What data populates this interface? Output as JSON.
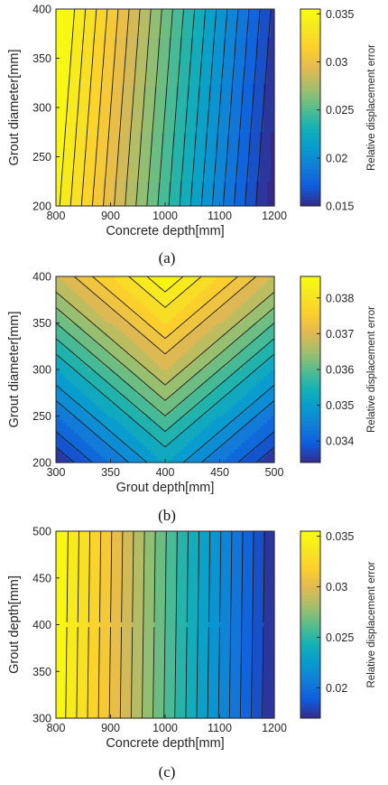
{
  "captions": [
    "(a)",
    "(b)",
    "(c)"
  ],
  "chart_data": [
    {
      "type": "heatmap",
      "subtype": "filled-contour",
      "caption": "(a)",
      "xlabel": "Concrete depth[mm]",
      "ylabel": "Grout diameter[mm]",
      "colorbar_label": "Relative displacement error",
      "xlim": [
        800,
        1200
      ],
      "ylim": [
        200,
        400
      ],
      "xticks": [
        800,
        900,
        1000,
        1100,
        1200
      ],
      "yticks": [
        200,
        250,
        300,
        350,
        400
      ],
      "clim": [
        0.015,
        0.0355
      ],
      "colorbar_ticks": [
        0.015,
        0.02,
        0.025,
        0.03,
        0.035
      ],
      "colorbar_tick_labels": [
        "0.015",
        "0.02",
        "0.025",
        "0.03",
        "0.035"
      ],
      "colormap": "parula",
      "contour_levels": 20,
      "function": "plane",
      "params": {
        "base": 0.0352,
        "xlow": 820,
        "xhigh": 1200,
        "slope_y": 0.0014,
        "y_center": 400,
        "y_span": 200,
        "drop": 0.0195
      }
    },
    {
      "type": "heatmap",
      "subtype": "filled-contour",
      "caption": "(b)",
      "xlabel": "Grout depth[mm]",
      "ylabel": "Grout diameter[mm]",
      "colorbar_label": "Relative displacement error",
      "xlim": [
        300,
        500
      ],
      "ylim": [
        200,
        400
      ],
      "xticks": [
        300,
        350,
        400,
        450,
        500
      ],
      "yticks": [
        200,
        250,
        300,
        350,
        400
      ],
      "clim": [
        0.0334,
        0.0386
      ],
      "colorbar_ticks": [
        0.034,
        0.035,
        0.036,
        0.037,
        0.038
      ],
      "colorbar_tick_labels": [
        "0.034",
        "0.035",
        "0.036",
        "0.037",
        "0.038"
      ],
      "colormap": "parula",
      "contour_levels": 18,
      "function": "valley",
      "params": {
        "base": 0.0334,
        "x_center": 400,
        "x_half": 100,
        "w_x": 0.5,
        "w_y": 1.0,
        "span": 0.0052
      }
    },
    {
      "type": "heatmap",
      "subtype": "filled-contour",
      "caption": "(c)",
      "xlabel": "Concrete depth[mm]",
      "ylabel": "Grout depth[mm]",
      "colorbar_label": "Relative displacement error",
      "xlim": [
        800,
        1200
      ],
      "ylim": [
        300,
        500
      ],
      "xticks": [
        800,
        900,
        1000,
        1100,
        1200
      ],
      "yticks": [
        300,
        350,
        400,
        450,
        500
      ],
      "clim": [
        0.017,
        0.0355
      ],
      "colorbar_ticks": [
        0.02,
        0.025,
        0.03,
        0.035
      ],
      "colorbar_tick_labels": [
        "0.02",
        "0.025",
        "0.03",
        "0.035"
      ],
      "colormap": "parula",
      "contour_levels": 20,
      "function": "plane",
      "params": {
        "base": 0.0355,
        "xlow": 800,
        "xhigh": 1200,
        "slope_y": 0.0002,
        "y_center": 400,
        "y_span": 200,
        "drop": 0.0185
      }
    }
  ]
}
